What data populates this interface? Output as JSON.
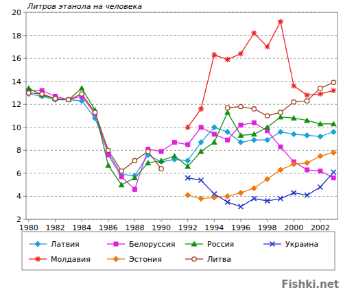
{
  "chart_data": {
    "type": "line",
    "y_label": "Литров этанола на человека",
    "annotations": [
      "Fishki.net"
    ],
    "x": [
      1980,
      1981,
      1982,
      1983,
      1984,
      1985,
      1986,
      1987,
      1988,
      1989,
      1990,
      1991,
      1992,
      1993,
      1994,
      1995,
      1996,
      1997,
      1998,
      1999,
      2000,
      2001,
      2002,
      2003
    ],
    "xlim": [
      1979.8,
      2003.3
    ],
    "xticks": [
      1980,
      1982,
      1984,
      1986,
      1988,
      1990,
      1992,
      1994,
      1996,
      1998,
      2000,
      2002
    ],
    "ylim": [
      2,
      20
    ],
    "yticks": [
      2,
      4,
      6,
      8,
      10,
      12,
      14,
      16,
      18,
      20
    ],
    "grid": true,
    "legend": "bottom",
    "series": [
      {
        "name": "Латвия",
        "color": "#1ea0dc",
        "marker": "diamond",
        "values": [
          12.9,
          12.7,
          12.4,
          12.4,
          12.3,
          10.8,
          7.8,
          5.9,
          5.8,
          7.6,
          7.0,
          7.2,
          7.1,
          8.7,
          10.0,
          9.6,
          8.7,
          8.9,
          8.9,
          9.6,
          9.4,
          9.3,
          9.2,
          9.6
        ]
      },
      {
        "name": "Белоруссия",
        "color": "#e020e0",
        "marker": "square",
        "values": [
          13.2,
          13.2,
          12.7,
          12.4,
          12.7,
          11.2,
          7.6,
          5.7,
          4.6,
          8.1,
          7.9,
          8.7,
          8.5,
          10.0,
          9.4,
          8.9,
          10.2,
          10.4,
          9.7,
          8.3,
          7.0,
          6.3,
          6.2,
          5.6
        ]
      },
      {
        "name": "Россия",
        "color": "#109010",
        "marker": "triangle",
        "values": [
          13.4,
          12.8,
          12.5,
          12.4,
          13.4,
          11.5,
          6.7,
          5.0,
          5.6,
          6.9,
          7.1,
          7.5,
          6.6,
          7.9,
          8.7,
          11.3,
          9.3,
          9.4,
          10.0,
          10.9,
          10.8,
          10.6,
          10.3,
          10.3
        ]
      },
      {
        "name": "Украина",
        "color": "#2030d0",
        "marker": "x",
        "values": [
          null,
          null,
          null,
          null,
          null,
          null,
          null,
          null,
          null,
          null,
          null,
          null,
          5.6,
          5.4,
          4.2,
          3.5,
          3.1,
          3.8,
          3.6,
          3.8,
          4.3,
          4.1,
          4.8,
          6.1
        ]
      },
      {
        "name": "Молдавия",
        "color": "#f02020",
        "marker": "asterisk",
        "values": [
          null,
          null,
          null,
          null,
          null,
          null,
          null,
          null,
          null,
          null,
          null,
          null,
          10.0,
          11.6,
          16.3,
          15.9,
          16.4,
          18.2,
          17.0,
          19.2,
          13.6,
          12.8,
          12.9,
          13.2
        ]
      },
      {
        "name": "Эстония",
        "color": "#f07810",
        "marker": "diamond",
        "values": [
          null,
          null,
          null,
          null,
          null,
          null,
          null,
          null,
          null,
          null,
          null,
          null,
          4.1,
          3.8,
          3.9,
          4.0,
          4.3,
          4.7,
          5.5,
          6.3,
          6.8,
          6.9,
          7.5,
          7.8
        ]
      },
      {
        "name": "Литва",
        "color": "#a0401c",
        "marker": "circle",
        "values": [
          13.0,
          12.9,
          12.5,
          12.4,
          12.9,
          11.3,
          8.0,
          6.2,
          7.1,
          7.9,
          6.4,
          null,
          null,
          null,
          null,
          11.7,
          11.8,
          11.6,
          11.0,
          11.3,
          12.2,
          12.3,
          13.4,
          13.9
        ]
      }
    ]
  }
}
